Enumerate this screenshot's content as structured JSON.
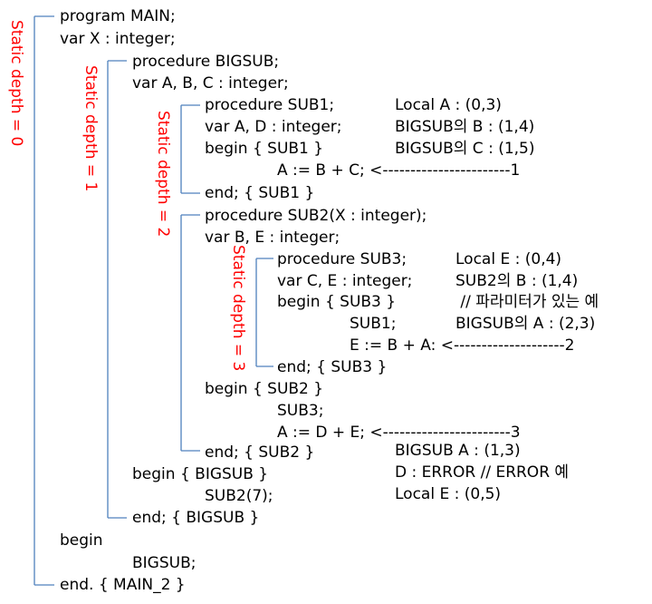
{
  "code_lines": [
    "program MAIN;",
    "var X : integer;",
    "procedure BIGSUB;",
    "var A, B, C : integer;",
    "procedure SUB1;",
    "var A, D : integer;",
    "begin { SUB1 }",
    "A := B + C; <-----------------------1",
    "end; { SUB1 }",
    "procedure SUB2(X : integer);",
    "var B, E : integer;",
    "procedure SUB3;",
    "var C, E : integer;",
    "begin { SUB3 }",
    "SUB1;",
    "E := B + A: <--------------------2",
    "end; { SUB3 }",
    "begin { SUB2 }",
    "SUB3;",
    "A := D + E; <-----------------------3",
    "end; { SUB2 }",
    "begin { BIGSUB }",
    "SUB2(7);",
    "end; { BIGSUB }",
    "begin",
    "BIGSUB;",
    "end. { MAIN_2 }"
  ],
  "depth_labels": [
    "Static depth = 0",
    "Static depth = 1",
    "Static depth = 2",
    "Static depth = 3"
  ],
  "notes": {
    "point1": [
      "Local A : (0,3)",
      "BIGSUB의 B : (1,4)",
      "BIGSUB의 C : (1,5)"
    ],
    "point2": [
      "Local E : (0,4)",
      "SUB2의 B : (1,4)",
      " // 파라미터가 있는 예",
      "BIGSUB의 A : (2,3)"
    ],
    "point3": [
      "BIGSUB A : (1,3)",
      "D : ERROR // ERROR 예",
      "Local E : (0,5)"
    ]
  },
  "colors": {
    "bracket": "#4f81bd",
    "depth_label": "#ff0000",
    "text": "#000000"
  }
}
